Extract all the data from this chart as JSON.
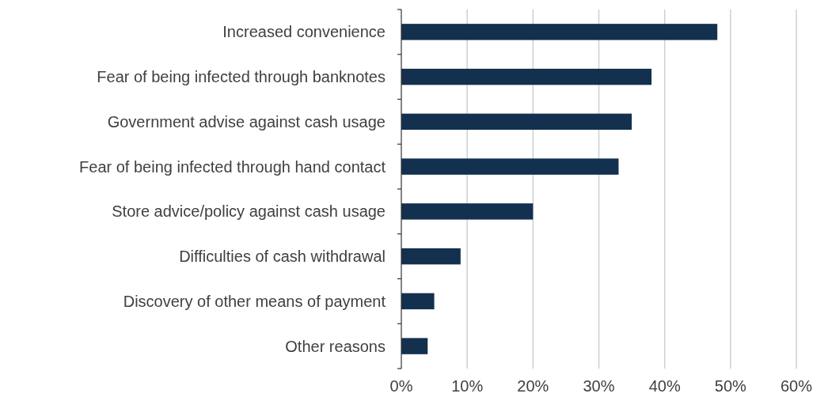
{
  "chart_data": {
    "type": "bar",
    "orientation": "horizontal",
    "categories": [
      "Increased convenience",
      "Fear of being infected through banknotes",
      "Government advise against cash usage",
      "Fear of being infected through hand contact",
      "Store advice/policy against cash usage",
      "Difficulties of cash withdrawal",
      "Discovery of other means of payment",
      "Other reasons"
    ],
    "values": [
      48,
      38,
      35,
      33,
      20,
      9,
      5,
      4
    ],
    "color": "#14304f",
    "xlim": [
      0,
      60
    ],
    "xticks": [
      {
        "value": 0,
        "label": "0%"
      },
      {
        "value": 10,
        "label": "10%"
      },
      {
        "value": 20,
        "label": "20%"
      },
      {
        "value": 30,
        "label": "30%"
      },
      {
        "value": 40,
        "label": "40%"
      },
      {
        "value": 50,
        "label": "50%"
      },
      {
        "value": 60,
        "label": "60%"
      }
    ],
    "grid": "x"
  }
}
